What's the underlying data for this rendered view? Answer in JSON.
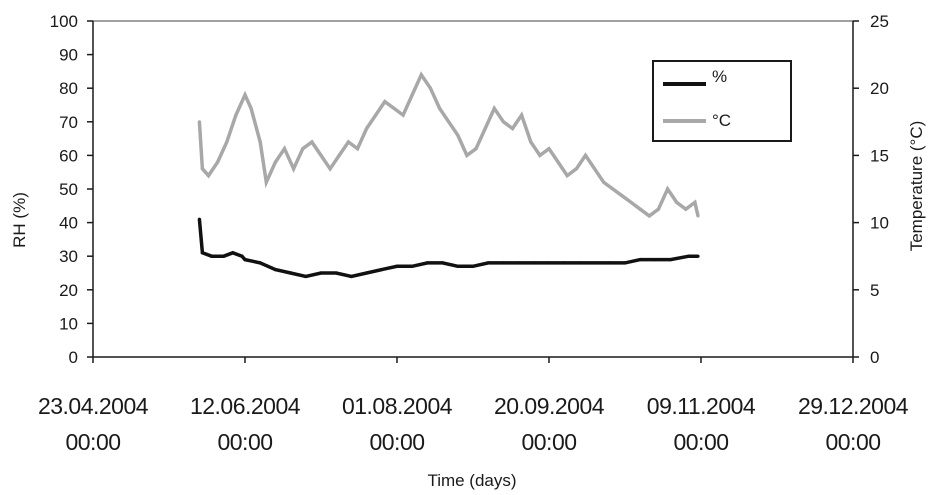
{
  "chart_data": {
    "type": "line",
    "title": "",
    "xlabel": "Time (days)",
    "ylabel_left": "RH (%)",
    "ylabel_right": "Temperature (°C)",
    "x_ticks": [
      {
        "date": "23.04.2004",
        "time": "00:00"
      },
      {
        "date": "12.06.2004",
        "time": "00:00"
      },
      {
        "date": "01.08.2004",
        "time": "00:00"
      },
      {
        "date": "20.09.2004",
        "time": "00:00"
      },
      {
        "date": "09.11.2004",
        "time": "00:00"
      },
      {
        "date": "29.12.2004",
        "time": "00:00"
      }
    ],
    "xlim": [
      "23.04.2004",
      "29.12.2004"
    ],
    "ylim_left": [
      0,
      100
    ],
    "y_ticks_left": [
      0,
      10,
      20,
      30,
      40,
      50,
      60,
      70,
      80,
      90,
      100
    ],
    "ylim_right": [
      0,
      25
    ],
    "y_ticks_right": [
      0,
      5,
      10,
      15,
      20,
      25
    ],
    "legend": {
      "position": "top-right"
    },
    "grid": false,
    "series": [
      {
        "name": "%",
        "axis": "left",
        "color": "#111111",
        "points": [
          [
            "28.05.2004",
            41
          ],
          [
            "29.05.2004",
            31
          ],
          [
            "01.06.2004",
            30
          ],
          [
            "05.06.2004",
            30
          ],
          [
            "08.06.2004",
            31
          ],
          [
            "11.06.2004",
            30
          ],
          [
            "12.06.2004",
            29
          ],
          [
            "17.06.2004",
            28
          ],
          [
            "22.06.2004",
            26
          ],
          [
            "27.06.2004",
            25
          ],
          [
            "02.07.2004",
            24
          ],
          [
            "07.07.2004",
            25
          ],
          [
            "12.07.2004",
            25
          ],
          [
            "17.07.2004",
            24
          ],
          [
            "22.07.2004",
            25
          ],
          [
            "27.07.2004",
            26
          ],
          [
            "01.08.2004",
            27
          ],
          [
            "06.08.2004",
            27
          ],
          [
            "11.08.2004",
            28
          ],
          [
            "16.08.2004",
            28
          ],
          [
            "21.08.2004",
            27
          ],
          [
            "26.08.2004",
            27
          ],
          [
            "31.08.2004",
            28
          ],
          [
            "05.09.2004",
            28
          ],
          [
            "10.09.2004",
            28
          ],
          [
            "15.09.2004",
            28
          ],
          [
            "20.09.2004",
            28
          ],
          [
            "25.09.2004",
            28
          ],
          [
            "30.09.2004",
            28
          ],
          [
            "05.10.2004",
            28
          ],
          [
            "10.10.2004",
            28
          ],
          [
            "15.10.2004",
            28
          ],
          [
            "20.10.2004",
            29
          ],
          [
            "25.10.2004",
            29
          ],
          [
            "30.10.2004",
            29
          ],
          [
            "05.11.2004",
            30
          ],
          [
            "08.11.2004",
            30
          ]
        ]
      },
      {
        "name": "°C",
        "axis": "right",
        "color": "#a8a8a8",
        "points": [
          [
            "28.05.2004",
            17.5
          ],
          [
            "29.05.2004",
            14.0
          ],
          [
            "31.05.2004",
            13.5
          ],
          [
            "03.06.2004",
            14.5
          ],
          [
            "06.06.2004",
            16.0
          ],
          [
            "09.06.2004",
            18.0
          ],
          [
            "12.06.2004",
            19.5
          ],
          [
            "14.06.2004",
            18.5
          ],
          [
            "17.06.2004",
            16.0
          ],
          [
            "19.06.2004",
            13.0
          ],
          [
            "22.06.2004",
            14.5
          ],
          [
            "25.06.2004",
            15.5
          ],
          [
            "28.06.2004",
            14.0
          ],
          [
            "01.07.2004",
            15.5
          ],
          [
            "04.07.2004",
            16.0
          ],
          [
            "07.07.2004",
            15.0
          ],
          [
            "10.07.2004",
            14.0
          ],
          [
            "13.07.2004",
            15.0
          ],
          [
            "16.07.2004",
            16.0
          ],
          [
            "19.07.2004",
            15.5
          ],
          [
            "22.07.2004",
            17.0
          ],
          [
            "25.07.2004",
            18.0
          ],
          [
            "28.07.2004",
            19.0
          ],
          [
            "31.07.2004",
            18.5
          ],
          [
            "03.08.2004",
            18.0
          ],
          [
            "06.08.2004",
            19.5
          ],
          [
            "09.08.2004",
            21.0
          ],
          [
            "12.08.2004",
            20.0
          ],
          [
            "15.08.2004",
            18.5
          ],
          [
            "18.08.2004",
            17.5
          ],
          [
            "21.08.2004",
            16.5
          ],
          [
            "24.08.2004",
            15.0
          ],
          [
            "27.08.2004",
            15.5
          ],
          [
            "30.08.2004",
            17.0
          ],
          [
            "02.09.2004",
            18.5
          ],
          [
            "05.09.2004",
            17.5
          ],
          [
            "08.09.2004",
            17.0
          ],
          [
            "11.09.2004",
            18.0
          ],
          [
            "14.09.2004",
            16.0
          ],
          [
            "17.09.2004",
            15.0
          ],
          [
            "20.09.2004",
            15.5
          ],
          [
            "23.09.2004",
            14.5
          ],
          [
            "26.09.2004",
            13.5
          ],
          [
            "29.09.2004",
            14.0
          ],
          [
            "02.10.2004",
            15.0
          ],
          [
            "05.10.2004",
            14.0
          ],
          [
            "08.10.2004",
            13.0
          ],
          [
            "11.10.2004",
            12.5
          ],
          [
            "14.10.2004",
            12.0
          ],
          [
            "17.10.2004",
            11.5
          ],
          [
            "20.10.2004",
            11.0
          ],
          [
            "23.10.2004",
            10.5
          ],
          [
            "26.10.2004",
            11.0
          ],
          [
            "29.10.2004",
            12.5
          ],
          [
            "01.11.2004",
            11.5
          ],
          [
            "04.11.2004",
            11.0
          ],
          [
            "07.11.2004",
            11.5
          ],
          [
            "08.11.2004",
            10.5
          ]
        ]
      }
    ]
  }
}
